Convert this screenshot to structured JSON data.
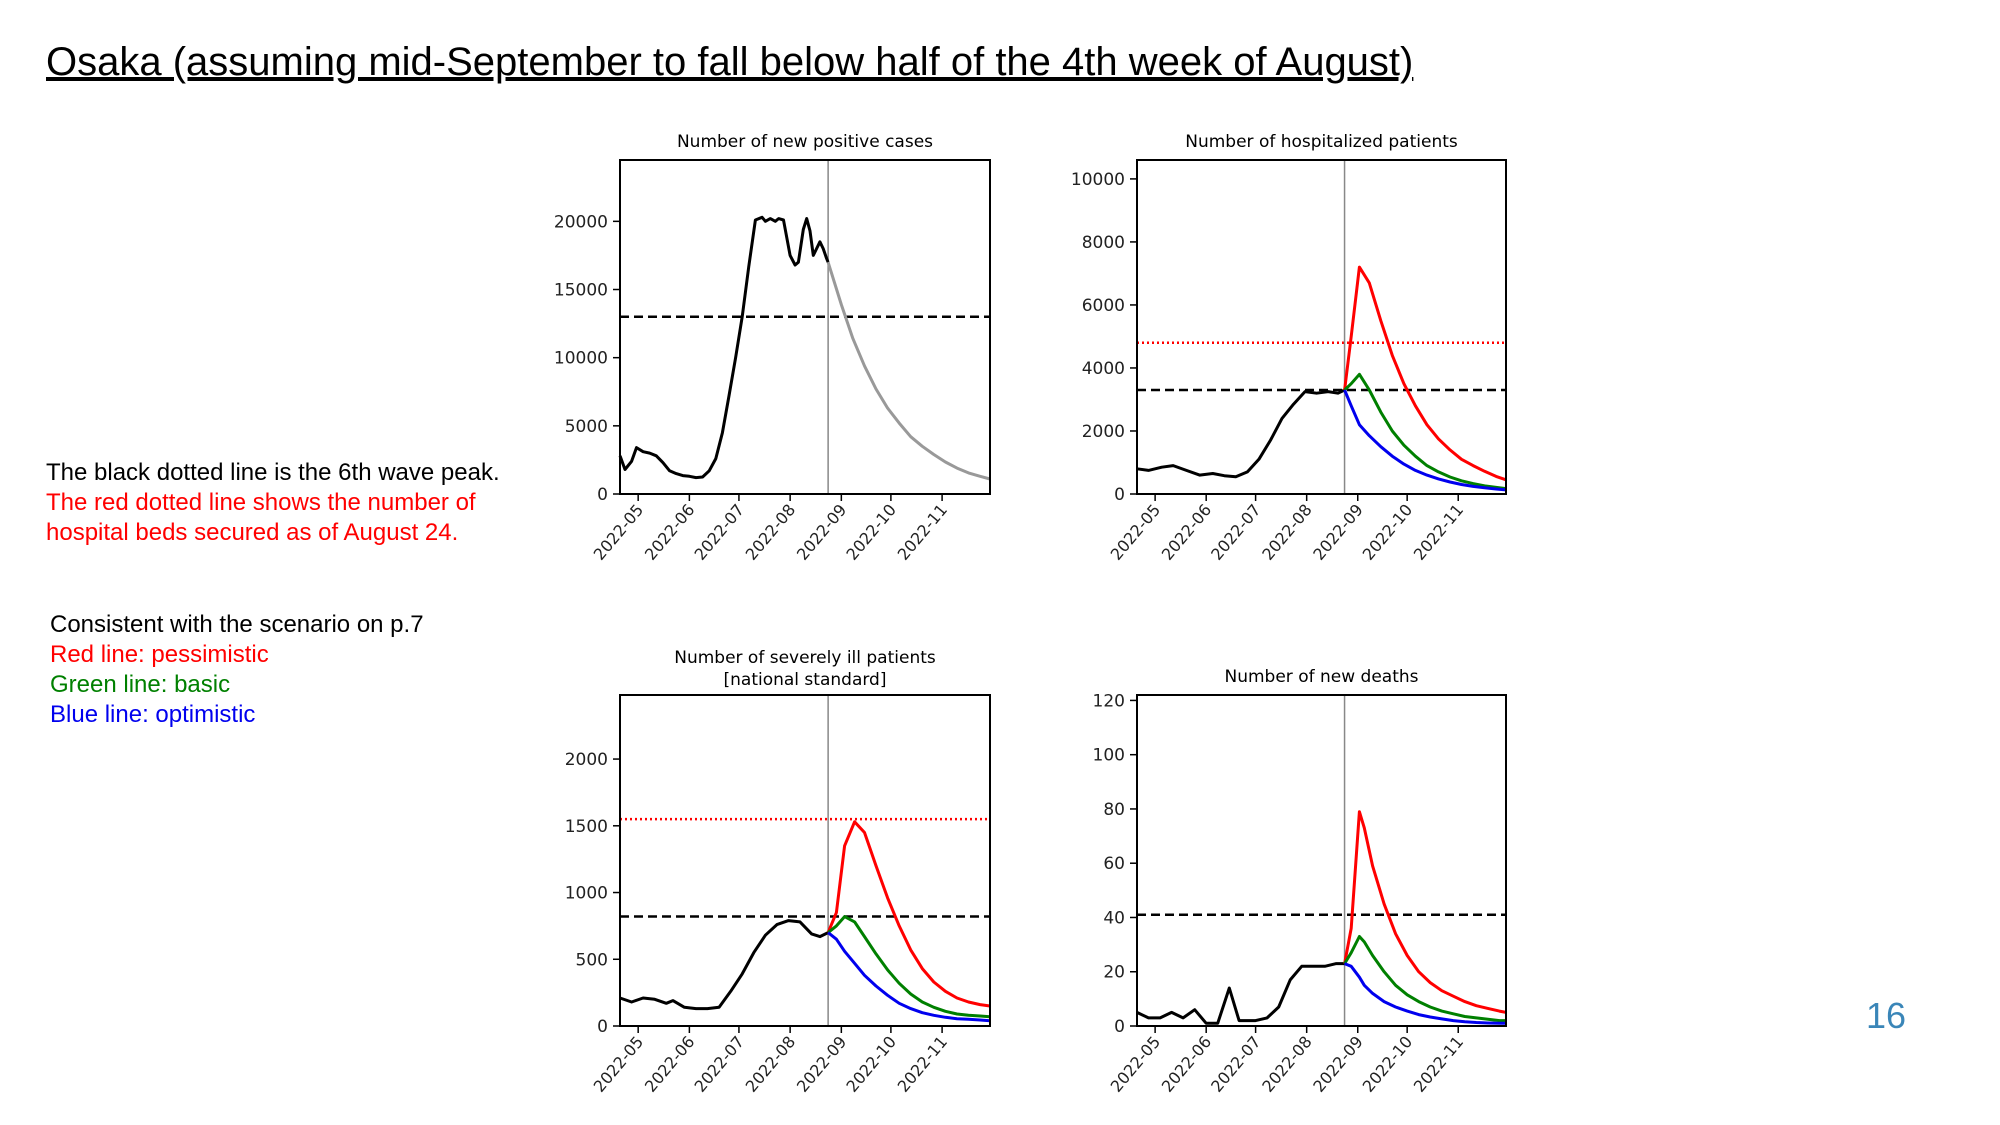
{
  "slide": {
    "title": "Osaka (assuming mid-September to fall below half of the 4th week of August)",
    "page_number": "16"
  },
  "legend_note": {
    "line1": "The black dotted line is the 6th wave peak.",
    "line2": "The red dotted line shows the number of",
    "line3": "hospital beds secured as of August 24.",
    "color_black": "#000000",
    "color_red": "#ff0000"
  },
  "scenario_note": {
    "line1": "Consistent with the scenario on p.7",
    "red": "Red line: pessimistic",
    "green": "Green line: basic",
    "blue": "Blue line: optimistic",
    "color_red": "#ff0000",
    "color_green": "#008000",
    "color_blue": "#0000ee"
  },
  "chart_data": [
    {
      "type": "line",
      "title": "Number of new positive cases",
      "x_ticks": [
        "2022-05",
        "2022-06",
        "2022-07",
        "2022-08",
        "2022-09",
        "2022-10",
        "2022-11"
      ],
      "xlim": [
        "2022-04-20",
        "2022-11-30"
      ],
      "y_ticks": [
        "0",
        "5000",
        "10000",
        "15000",
        "20000"
      ],
      "ylim": [
        0,
        24500
      ],
      "vline": "2022-08-24",
      "hlines": [
        {
          "kind": "6th wave peak",
          "value": 13000,
          "color": "#000000",
          "style": "dashed"
        }
      ],
      "series": [
        {
          "role": "actual",
          "color": "#000000",
          "x": [
            "2022-04-20",
            "2022-04-23",
            "2022-04-27",
            "2022-04-30",
            "2022-05-04",
            "2022-05-08",
            "2022-05-12",
            "2022-05-16",
            "2022-05-20",
            "2022-05-24",
            "2022-05-28",
            "2022-06-01",
            "2022-06-05",
            "2022-06-09",
            "2022-06-13",
            "2022-06-17",
            "2022-06-21",
            "2022-06-25",
            "2022-06-29",
            "2022-07-03",
            "2022-07-07",
            "2022-07-11",
            "2022-07-15",
            "2022-07-17",
            "2022-07-20",
            "2022-07-23",
            "2022-07-25",
            "2022-07-28",
            "2022-08-01",
            "2022-08-04",
            "2022-08-06",
            "2022-08-09",
            "2022-08-11",
            "2022-08-13",
            "2022-08-15",
            "2022-08-17",
            "2022-08-19",
            "2022-08-21",
            "2022-08-23",
            "2022-08-24"
          ],
          "y": [
            2800,
            1800,
            2400,
            3400,
            3100,
            3000,
            2800,
            2300,
            1700,
            1500,
            1350,
            1300,
            1200,
            1250,
            1700,
            2600,
            4500,
            7200,
            10000,
            13000,
            16700,
            20100,
            20300,
            20000,
            20200,
            20000,
            20200,
            20100,
            17500,
            16800,
            17000,
            19400,
            20200,
            19300,
            17500,
            18000,
            18500,
            18000,
            17300,
            17000
          ]
        },
        {
          "role": "projection",
          "color": "#999999",
          "x": [
            "2022-08-24",
            "2022-09-01",
            "2022-09-08",
            "2022-09-15",
            "2022-09-22",
            "2022-09-29",
            "2022-10-06",
            "2022-10-13",
            "2022-10-20",
            "2022-10-27",
            "2022-11-03",
            "2022-11-10",
            "2022-11-17",
            "2022-11-24",
            "2022-11-30"
          ],
          "y": [
            17000,
            13900,
            11400,
            9400,
            7700,
            6300,
            5200,
            4200,
            3500,
            2900,
            2350,
            1900,
            1550,
            1300,
            1100
          ]
        }
      ]
    },
    {
      "type": "line",
      "title": "Number of hospitalized patients",
      "x_ticks": [
        "2022-05",
        "2022-06",
        "2022-07",
        "2022-08",
        "2022-09",
        "2022-10",
        "2022-11"
      ],
      "xlim": [
        "2022-04-20",
        "2022-11-30"
      ],
      "y_ticks": [
        "0",
        "2000",
        "4000",
        "6000",
        "8000",
        "10000"
      ],
      "ylim": [
        0,
        10600
      ],
      "vline": "2022-08-24",
      "hlines": [
        {
          "kind": "hospital beds secured as of August 24",
          "value": 4800,
          "color": "#ff0000",
          "style": "dotted"
        },
        {
          "kind": "6th wave peak",
          "value": 3300,
          "color": "#000000",
          "style": "dashed"
        }
      ],
      "series": [
        {
          "role": "actual",
          "color": "#000000",
          "x": [
            "2022-04-20",
            "2022-04-27",
            "2022-05-05",
            "2022-05-12",
            "2022-05-20",
            "2022-05-28",
            "2022-06-05",
            "2022-06-12",
            "2022-06-19",
            "2022-06-26",
            "2022-07-03",
            "2022-07-10",
            "2022-07-17",
            "2022-07-24",
            "2022-07-31",
            "2022-08-07",
            "2022-08-14",
            "2022-08-20",
            "2022-08-24"
          ],
          "y": [
            800,
            750,
            850,
            900,
            750,
            600,
            650,
            580,
            550,
            700,
            1100,
            1700,
            2400,
            2850,
            3250,
            3200,
            3250,
            3200,
            3300
          ]
        },
        {
          "role": "pessimistic",
          "color": "#ff0000",
          "x": [
            "2022-08-24",
            "2022-08-28",
            "2022-09-02",
            "2022-09-08",
            "2022-09-15",
            "2022-09-22",
            "2022-09-29",
            "2022-10-06",
            "2022-10-13",
            "2022-10-20",
            "2022-10-27",
            "2022-11-03",
            "2022-11-10",
            "2022-11-17",
            "2022-11-24",
            "2022-11-30"
          ],
          "y": [
            3300,
            5000,
            7200,
            6700,
            5500,
            4400,
            3500,
            2800,
            2200,
            1750,
            1400,
            1100,
            900,
            720,
            560,
            450
          ]
        },
        {
          "role": "basic",
          "color": "#008000",
          "x": [
            "2022-08-24",
            "2022-08-28",
            "2022-09-02",
            "2022-09-08",
            "2022-09-15",
            "2022-09-22",
            "2022-09-29",
            "2022-10-06",
            "2022-10-13",
            "2022-10-20",
            "2022-10-27",
            "2022-11-03",
            "2022-11-10",
            "2022-11-17",
            "2022-11-24",
            "2022-11-30"
          ],
          "y": [
            3300,
            3500,
            3800,
            3300,
            2600,
            2000,
            1550,
            1200,
            900,
            700,
            540,
            420,
            330,
            260,
            210,
            170
          ]
        },
        {
          "role": "optimistic",
          "color": "#0000ee",
          "x": [
            "2022-08-24",
            "2022-08-28",
            "2022-09-02",
            "2022-09-08",
            "2022-09-15",
            "2022-09-22",
            "2022-09-29",
            "2022-10-06",
            "2022-10-13",
            "2022-10-20",
            "2022-10-27",
            "2022-11-03",
            "2022-11-10",
            "2022-11-17",
            "2022-11-24",
            "2022-11-30"
          ],
          "y": [
            3300,
            2800,
            2200,
            1850,
            1500,
            1200,
            950,
            750,
            600,
            480,
            380,
            300,
            240,
            200,
            160,
            130
          ]
        }
      ]
    },
    {
      "type": "line",
      "title": "Number of severely ill patients",
      "subtitle": "[national standard]",
      "x_ticks": [
        "2022-05",
        "2022-06",
        "2022-07",
        "2022-08",
        "2022-09",
        "2022-10",
        "2022-11"
      ],
      "xlim": [
        "2022-04-20",
        "2022-11-30"
      ],
      "y_ticks": [
        "0",
        "500",
        "1000",
        "1500",
        "2000"
      ],
      "ylim": [
        0,
        2480
      ],
      "vline": "2022-08-24",
      "hlines": [
        {
          "kind": "hospital beds secured as of August 24",
          "value": 1550,
          "color": "#ff0000",
          "style": "dotted"
        },
        {
          "kind": "6th wave peak",
          "value": 820,
          "color": "#000000",
          "style": "dashed"
        }
      ],
      "series": [
        {
          "role": "actual",
          "color": "#000000",
          "x": [
            "2022-04-20",
            "2022-04-27",
            "2022-05-04",
            "2022-05-11",
            "2022-05-18",
            "2022-05-22",
            "2022-05-29",
            "2022-06-05",
            "2022-06-12",
            "2022-06-19",
            "2022-06-26",
            "2022-07-03",
            "2022-07-10",
            "2022-07-17",
            "2022-07-24",
            "2022-07-31",
            "2022-08-07",
            "2022-08-14",
            "2022-08-19",
            "2022-08-24"
          ],
          "y": [
            210,
            180,
            210,
            200,
            170,
            190,
            140,
            130,
            130,
            140,
            260,
            390,
            550,
            680,
            760,
            790,
            780,
            690,
            670,
            700
          ]
        },
        {
          "role": "pessimistic",
          "color": "#ff0000",
          "x": [
            "2022-08-24",
            "2022-08-29",
            "2022-09-03",
            "2022-09-09",
            "2022-09-15",
            "2022-09-22",
            "2022-09-29",
            "2022-10-06",
            "2022-10-13",
            "2022-10-20",
            "2022-10-27",
            "2022-11-03",
            "2022-11-10",
            "2022-11-17",
            "2022-11-24",
            "2022-11-30"
          ],
          "y": [
            700,
            850,
            1350,
            1530,
            1450,
            1200,
            960,
            750,
            570,
            430,
            330,
            260,
            210,
            180,
            160,
            150
          ]
        },
        {
          "role": "basic",
          "color": "#008000",
          "x": [
            "2022-08-24",
            "2022-08-29",
            "2022-09-03",
            "2022-09-09",
            "2022-09-15",
            "2022-09-22",
            "2022-09-29",
            "2022-10-06",
            "2022-10-13",
            "2022-10-20",
            "2022-10-27",
            "2022-11-03",
            "2022-11-10",
            "2022-11-17",
            "2022-11-24",
            "2022-11-30"
          ],
          "y": [
            700,
            750,
            820,
            780,
            670,
            540,
            420,
            320,
            240,
            180,
            140,
            110,
            90,
            80,
            75,
            70
          ]
        },
        {
          "role": "optimistic",
          "color": "#0000ee",
          "x": [
            "2022-08-24",
            "2022-08-29",
            "2022-09-03",
            "2022-09-09",
            "2022-09-15",
            "2022-09-22",
            "2022-09-29",
            "2022-10-06",
            "2022-10-13",
            "2022-10-20",
            "2022-10-27",
            "2022-11-03",
            "2022-11-10",
            "2022-11-17",
            "2022-11-24",
            "2022-11-30"
          ],
          "y": [
            700,
            650,
            560,
            470,
            380,
            300,
            230,
            170,
            130,
            100,
            80,
            65,
            55,
            50,
            45,
            40
          ]
        }
      ]
    },
    {
      "type": "line",
      "title": "Number of new deaths",
      "x_ticks": [
        "2022-05",
        "2022-06",
        "2022-07",
        "2022-08",
        "2022-09",
        "2022-10",
        "2022-11"
      ],
      "xlim": [
        "2022-04-20",
        "2022-11-30"
      ],
      "y_ticks": [
        "0",
        "20",
        "40",
        "60",
        "80",
        "100",
        "120"
      ],
      "ylim": [
        0,
        122
      ],
      "vline": "2022-08-24",
      "hlines": [
        {
          "kind": "6th wave peak",
          "value": 41,
          "color": "#000000",
          "style": "dashed"
        }
      ],
      "series": [
        {
          "role": "actual",
          "color": "#000000",
          "x": [
            "2022-04-20",
            "2022-04-27",
            "2022-05-04",
            "2022-05-11",
            "2022-05-18",
            "2022-05-25",
            "2022-06-01",
            "2022-06-08",
            "2022-06-15",
            "2022-06-21",
            "2022-06-25",
            "2022-07-01",
            "2022-07-08",
            "2022-07-15",
            "2022-07-22",
            "2022-07-29",
            "2022-08-05",
            "2022-08-12",
            "2022-08-19",
            "2022-08-24"
          ],
          "y": [
            5,
            3,
            3,
            5,
            3,
            6,
            1,
            1,
            14,
            2,
            2,
            2,
            3,
            7,
            17,
            22,
            22,
            22,
            23,
            23
          ]
        },
        {
          "role": "pessimistic",
          "color": "#ff0000",
          "x": [
            "2022-08-24",
            "2022-08-28",
            "2022-09-02",
            "2022-09-05",
            "2022-09-10",
            "2022-09-17",
            "2022-09-24",
            "2022-10-01",
            "2022-10-08",
            "2022-10-15",
            "2022-10-22",
            "2022-10-29",
            "2022-11-05",
            "2022-11-12",
            "2022-11-19",
            "2022-11-26",
            "2022-11-30"
          ],
          "y": [
            23,
            36,
            79,
            73,
            59,
            45,
            34,
            26,
            20,
            16,
            13,
            11,
            9,
            7.5,
            6.5,
            5.5,
            5
          ]
        },
        {
          "role": "basic",
          "color": "#008000",
          "x": [
            "2022-08-24",
            "2022-08-28",
            "2022-09-02",
            "2022-09-05",
            "2022-09-10",
            "2022-09-17",
            "2022-09-24",
            "2022-10-01",
            "2022-10-08",
            "2022-10-15",
            "2022-10-22",
            "2022-10-29",
            "2022-11-05",
            "2022-11-12",
            "2022-11-19",
            "2022-11-26",
            "2022-11-30"
          ],
          "y": [
            23,
            27,
            33,
            31,
            26,
            20,
            15,
            11.5,
            9,
            7,
            5.5,
            4.5,
            3.5,
            3,
            2.5,
            2,
            2
          ]
        },
        {
          "role": "optimistic",
          "color": "#0000ee",
          "x": [
            "2022-08-24",
            "2022-08-28",
            "2022-09-02",
            "2022-09-05",
            "2022-09-10",
            "2022-09-17",
            "2022-09-24",
            "2022-10-01",
            "2022-10-08",
            "2022-10-15",
            "2022-10-22",
            "2022-10-29",
            "2022-11-05",
            "2022-11-12",
            "2022-11-19",
            "2022-11-26",
            "2022-11-30"
          ],
          "y": [
            23,
            22,
            18,
            15,
            12,
            9,
            7,
            5.5,
            4.2,
            3.3,
            2.6,
            2,
            1.6,
            1.3,
            1.1,
            1,
            1
          ]
        }
      ]
    }
  ]
}
